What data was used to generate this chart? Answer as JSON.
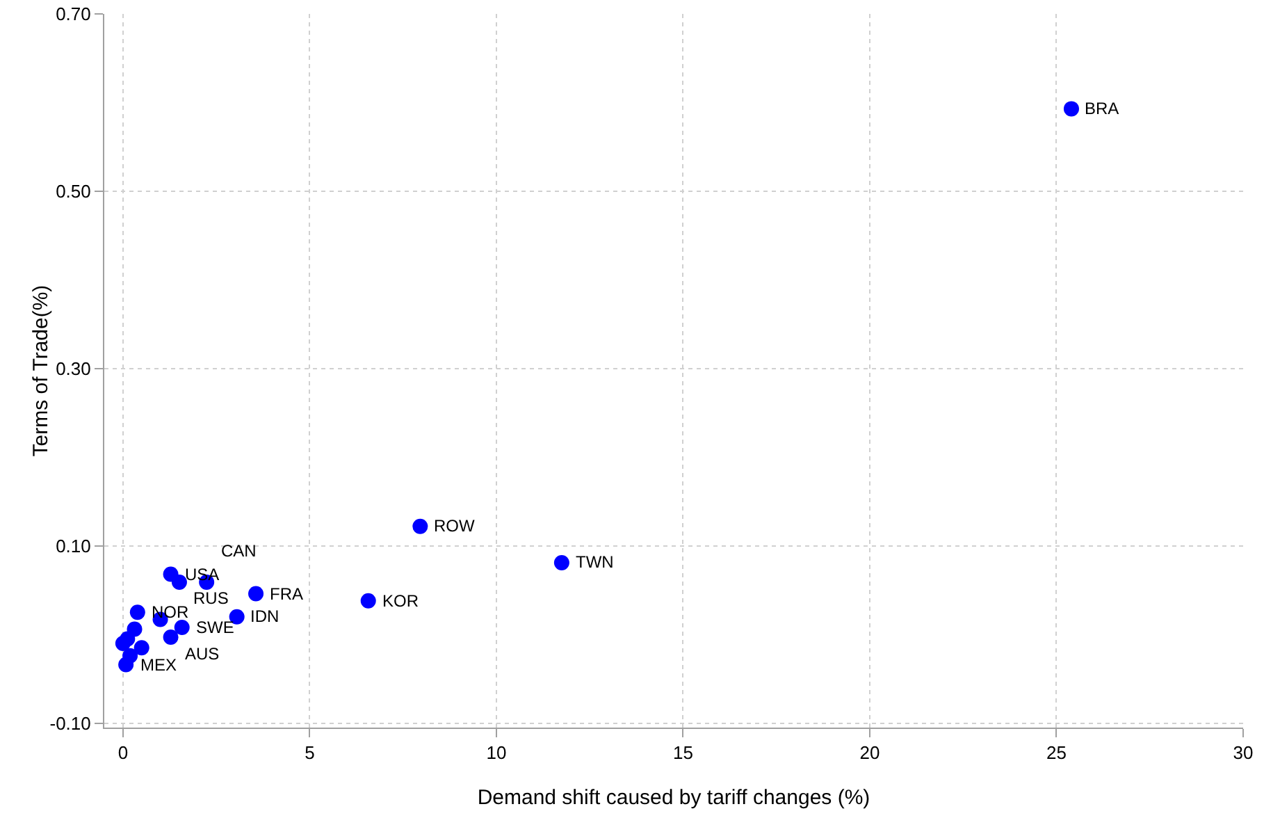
{
  "chart_data": {
    "type": "scatter",
    "xlabel": "Demand shift caused by tariff changes (%)",
    "ylabel": "Terms of Trade(%)",
    "series": [
      {
        "color": "#0000ff",
        "x": [
          25.4,
          7.96,
          11.75,
          6.57,
          3.56,
          3.05,
          1.28,
          1.51,
          2.24,
          0.39,
          1.58,
          1.28,
          0.08,
          1.0,
          0.31,
          0.12,
          0.0,
          0.19,
          0.5
        ],
        "values": [
          0.593,
          0.122,
          0.081,
          0.038,
          0.046,
          0.02,
          0.068,
          0.059,
          0.059,
          0.025,
          0.008,
          -0.003,
          -0.034,
          0.017,
          0.006,
          -0.005,
          -0.01,
          -0.024,
          -0.015
        ]
      }
    ],
    "annotations": [
      {
        "text": "BRA",
        "x": 25.4,
        "y": 0.593
      },
      {
        "text": "ROW",
        "x": 7.96,
        "y": 0.122
      },
      {
        "text": "TWN",
        "x": 11.75,
        "y": 0.081
      },
      {
        "text": "KOR",
        "x": 6.57,
        "y": 0.038
      },
      {
        "text": "FRA",
        "x": 3.56,
        "y": 0.046
      },
      {
        "text": "IDN",
        "x": 3.05,
        "y": 0.02
      },
      {
        "text": "USA",
        "x": 1.28,
        "y": 0.068
      },
      {
        "text": "RUS",
        "x": 1.51,
        "y": 0.059
      },
      {
        "text": "CAN",
        "x": 2.24,
        "y": 0.059
      },
      {
        "text": "NOR",
        "x": 0.39,
        "y": 0.025
      },
      {
        "text": "SWE",
        "x": 1.58,
        "y": 0.008
      },
      {
        "text": "AUS",
        "x": 1.28,
        "y": -0.003
      },
      {
        "text": "MEX",
        "x": 0.08,
        "y": -0.034
      }
    ],
    "xlim": [
      -0.5,
      30
    ],
    "xticks": [
      0,
      5,
      10,
      15,
      20,
      25,
      30
    ],
    "ylim": [
      -0.105,
      0.7
    ],
    "yticks": [
      {
        "value": -0.1,
        "label": "-0.10"
      },
      {
        "value": 0.1,
        "label": "0.10"
      },
      {
        "value": 0.3,
        "label": "0.30"
      },
      {
        "value": 0.5,
        "label": "0.50"
      },
      {
        "value": 0.7,
        "label": "0.70"
      }
    ],
    "grid": true,
    "marker": "circle"
  }
}
